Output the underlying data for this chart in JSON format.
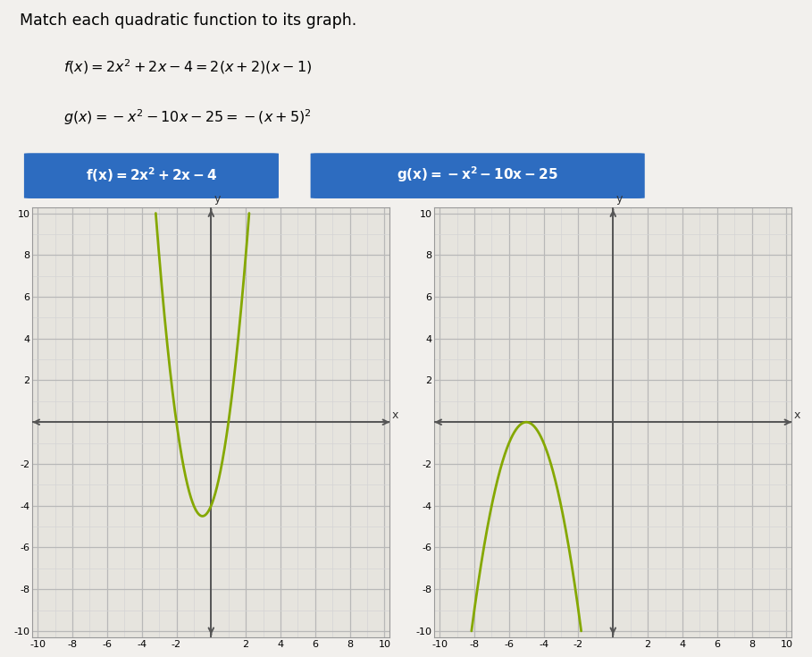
{
  "title": "Match each quadratic function to its graph.",
  "f_full_eq": "f(x) = 2x² + 2x − 4 = 2(x + 2)(x − 1)",
  "g_full_eq": "g(x) = −x² − 10x − 25 = −(x + 5)²",
  "f_box_label": "f(x) = 2x² + 2x − 4",
  "g_box_label": "g(x) = −x² − 10x − 25",
  "box_color": "#2d6cc0",
  "box_text_color": "#ffffff",
  "curve_color": "#85a800",
  "grid_major_color": "#b8b8b8",
  "grid_minor_color": "#d4d4d4",
  "bg_color": "#f2f0ed",
  "plot_bg": "#e6e4de",
  "axis_lw": 1.4,
  "curve_lw": 2.0,
  "xmin": -10,
  "xmax": 10,
  "ymin": -10,
  "ymax": 10
}
